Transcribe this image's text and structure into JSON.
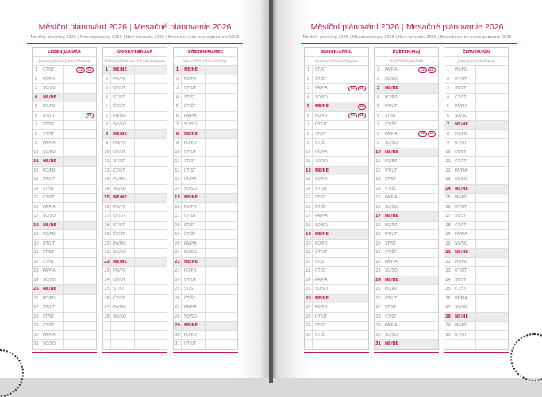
{
  "colors": {
    "accent": "#c2185b",
    "weekend_fill": "#ececec"
  },
  "pages": [
    {
      "title_cz": "Měsíční plánování 2026",
      "title_sk": "Mesačné plánovanie 2026",
      "subtitle": "Monthly planning 2026 | Monatsplanung 2026 | Havi tervezés 2026 | Ежемесячное планирование 2026"
    },
    {
      "title_cz": "Měsíční plánování 2026",
      "title_sk": "Mesačné plánovanie 2026",
      "subtitle": "Monthly planning 2026 | Monatsplanung 2026 | Havi tervezés 2026 | Ежемесячное планирование 2026"
    }
  ],
  "months": [
    {
      "name": "LEDEN/JANUÁR",
      "sub": "January/Januar/Január/Январь",
      "days": [
        [
          "1",
          "ČT/ŠT",
          "CZ",
          "SK"
        ],
        [
          "2",
          "PÁ/PIA"
        ],
        [
          "3",
          "SO/SO"
        ],
        [
          "4",
          "NE/NE"
        ],
        [
          "5",
          "PO/PO"
        ],
        [
          "6",
          "ÚT/UT",
          "SK"
        ],
        [
          "7",
          "ST/ST"
        ],
        [
          "8",
          "ČT/ŠT"
        ],
        [
          "9",
          "PÁ/PIA"
        ],
        [
          "10",
          "SO/SO"
        ],
        [
          "11",
          "NE/NE"
        ],
        [
          "12",
          "PO/PO"
        ],
        [
          "13",
          "ÚT/UT"
        ],
        [
          "14",
          "ST/ST"
        ],
        [
          "15",
          "ČT/ŠT"
        ],
        [
          "16",
          "PÁ/PIA"
        ],
        [
          "17",
          "SO/SO"
        ],
        [
          "18",
          "NE/NE"
        ],
        [
          "19",
          "PO/PO"
        ],
        [
          "20",
          "ÚT/UT"
        ],
        [
          "21",
          "ST/ST"
        ],
        [
          "22",
          "ČT/ŠT"
        ],
        [
          "23",
          "PÁ/PIA"
        ],
        [
          "24",
          "SO/SO"
        ],
        [
          "25",
          "NE/NE"
        ],
        [
          "26",
          "PO/PO"
        ],
        [
          "27",
          "ÚT/UT"
        ],
        [
          "28",
          "ST/ST"
        ],
        [
          "29",
          "ČT/ŠT"
        ],
        [
          "30",
          "PÁ/PIA"
        ],
        [
          "31",
          "SO/SO"
        ]
      ]
    },
    {
      "name": "ÚNOR/FEBRUÁR",
      "sub": "February/Februar/Február/Февраль",
      "days": [
        [
          "1",
          "NE/NE"
        ],
        [
          "2",
          "PO/PO"
        ],
        [
          "3",
          "ÚT/UT"
        ],
        [
          "4",
          "ST/ST"
        ],
        [
          "5",
          "ČT/ŠT"
        ],
        [
          "6",
          "PÁ/PIA"
        ],
        [
          "7",
          "SO/SO"
        ],
        [
          "8",
          "NE/NE"
        ],
        [
          "9",
          "PO/PO"
        ],
        [
          "10",
          "ÚT/UT"
        ],
        [
          "11",
          "ST/ST"
        ],
        [
          "12",
          "ČT/ŠT"
        ],
        [
          "13",
          "PÁ/PIA"
        ],
        [
          "14",
          "SO/SO"
        ],
        [
          "15",
          "NE/NE"
        ],
        [
          "16",
          "PO/PO"
        ],
        [
          "17",
          "ÚT/UT"
        ],
        [
          "18",
          "ST/ST"
        ],
        [
          "19",
          "ČT/ŠT"
        ],
        [
          "20",
          "PÁ/PIA"
        ],
        [
          "21",
          "SO/SO"
        ],
        [
          "22",
          "NE/NE"
        ],
        [
          "23",
          "PO/PO"
        ],
        [
          "24",
          "ÚT/UT"
        ],
        [
          "25",
          "ST/ST"
        ],
        [
          "26",
          "ČT/ŠT"
        ],
        [
          "27",
          "PÁ/PIA"
        ],
        [
          "28",
          "SO/SO"
        ]
      ]
    },
    {
      "name": "BŘEZEN/MAREC",
      "sub": "March/März/Március/Март",
      "days": [
        [
          "1",
          "NE/NE"
        ],
        [
          "2",
          "PO/PO"
        ],
        [
          "3",
          "ÚT/UT"
        ],
        [
          "4",
          "ST/ST"
        ],
        [
          "5",
          "ČT/ŠT"
        ],
        [
          "6",
          "PÁ/PIA"
        ],
        [
          "7",
          "SO/SO"
        ],
        [
          "8",
          "NE/NE"
        ],
        [
          "9",
          "PO/PO"
        ],
        [
          "10",
          "ÚT/UT"
        ],
        [
          "11",
          "ST/ST"
        ],
        [
          "12",
          "ČT/ŠT"
        ],
        [
          "13",
          "PÁ/PIA"
        ],
        [
          "14",
          "SO/SO"
        ],
        [
          "15",
          "NE/NE"
        ],
        [
          "16",
          "PO/PO"
        ],
        [
          "17",
          "ÚT/UT"
        ],
        [
          "18",
          "ST/ST"
        ],
        [
          "19",
          "ČT/ŠT"
        ],
        [
          "20",
          "PÁ/PIA"
        ],
        [
          "21",
          "SO/SO"
        ],
        [
          "22",
          "NE/NE"
        ],
        [
          "23",
          "PO/PO"
        ],
        [
          "24",
          "ÚT/UT"
        ],
        [
          "25",
          "ST/ST"
        ],
        [
          "26",
          "ČT/ŠT"
        ],
        [
          "27",
          "PÁ/PIA"
        ],
        [
          "28",
          "SO/SO"
        ],
        [
          "29",
          "NE/NE"
        ],
        [
          "30",
          "PO/PO"
        ],
        [
          "31",
          "ÚT/UT"
        ]
      ]
    },
    {
      "name": "DUBEN/APRÍL",
      "sub": "April/April/Április/Апрель",
      "days": [
        [
          "1",
          "ST/ST"
        ],
        [
          "2",
          "ČT/ŠT"
        ],
        [
          "3",
          "PÁ/PIA",
          "CZ",
          "SK"
        ],
        [
          "4",
          "SO/SO"
        ],
        [
          "5",
          "NE/NE",
          "SK"
        ],
        [
          "6",
          "PO/PO",
          "CZ",
          "SK"
        ],
        [
          "7",
          "ÚT/UT"
        ],
        [
          "8",
          "ST/ST"
        ],
        [
          "9",
          "ČT/ŠT"
        ],
        [
          "10",
          "PÁ/PIA"
        ],
        [
          "11",
          "SO/SO"
        ],
        [
          "12",
          "NE/NE"
        ],
        [
          "13",
          "PO/PO"
        ],
        [
          "14",
          "ÚT/UT"
        ],
        [
          "15",
          "ST/ST"
        ],
        [
          "16",
          "ČT/ŠT"
        ],
        [
          "17",
          "PÁ/PIA"
        ],
        [
          "18",
          "SO/SO"
        ],
        [
          "19",
          "NE/NE"
        ],
        [
          "20",
          "PO/PO"
        ],
        [
          "21",
          "ÚT/UT"
        ],
        [
          "22",
          "ST/ST"
        ],
        [
          "23",
          "ČT/ŠT"
        ],
        [
          "24",
          "PÁ/PIA"
        ],
        [
          "25",
          "SO/SO"
        ],
        [
          "26",
          "NE/NE"
        ],
        [
          "27",
          "PO/PO"
        ],
        [
          "28",
          "ÚT/UT"
        ],
        [
          "29",
          "ST/ST"
        ],
        [
          "30",
          "ČT/ŠT"
        ]
      ]
    },
    {
      "name": "KVĚTEN/MÁJ",
      "sub": "May/Mai/Május/Май",
      "days": [
        [
          "1",
          "PÁ/PIA",
          "CZ",
          "SK"
        ],
        [
          "2",
          "SO/SO"
        ],
        [
          "3",
          "NE/NE"
        ],
        [
          "4",
          "PO/PO"
        ],
        [
          "5",
          "ÚT/UT"
        ],
        [
          "6",
          "ST/ST"
        ],
        [
          "7",
          "ČT/ŠT"
        ],
        [
          "8",
          "PÁ/PIA",
          "CZ",
          "SK"
        ],
        [
          "9",
          "SO/SO"
        ],
        [
          "10",
          "NE/NE"
        ],
        [
          "11",
          "PO/PO"
        ],
        [
          "12",
          "ÚT/UT"
        ],
        [
          "13",
          "ST/ST"
        ],
        [
          "14",
          "ČT/ŠT"
        ],
        [
          "15",
          "PÁ/PIA"
        ],
        [
          "16",
          "SO/SO"
        ],
        [
          "17",
          "NE/NE"
        ],
        [
          "18",
          "PO/PO"
        ],
        [
          "19",
          "ÚT/UT"
        ],
        [
          "20",
          "ST/ST"
        ],
        [
          "21",
          "ČT/ŠT"
        ],
        [
          "22",
          "PÁ/PIA"
        ],
        [
          "23",
          "SO/SO"
        ],
        [
          "24",
          "NE/NE"
        ],
        [
          "25",
          "PO/PO"
        ],
        [
          "26",
          "ÚT/UT"
        ],
        [
          "27",
          "ST/ST"
        ],
        [
          "28",
          "ČT/ŠT"
        ],
        [
          "29",
          "PÁ/PIA"
        ],
        [
          "30",
          "SO/SO"
        ],
        [
          "31",
          "NE/NE"
        ]
      ]
    },
    {
      "name": "ČERVEN/JÚN",
      "sub": "June/Juni/Június/Июнь",
      "days": [
        [
          "1",
          "PO/PO"
        ],
        [
          "2",
          "ÚT/UT"
        ],
        [
          "3",
          "ST/ST"
        ],
        [
          "4",
          "ČT/ŠT"
        ],
        [
          "5",
          "PÁ/PIA"
        ],
        [
          "6",
          "SO/SO"
        ],
        [
          "7",
          "NE/NE"
        ],
        [
          "8",
          "PO/PO"
        ],
        [
          "9",
          "ÚT/UT"
        ],
        [
          "10",
          "ST/ST"
        ],
        [
          "11",
          "ČT/ŠT"
        ],
        [
          "12",
          "PÁ/PIA"
        ],
        [
          "13",
          "SO/SO"
        ],
        [
          "14",
          "NE/NE"
        ],
        [
          "15",
          "PO/PO"
        ],
        [
          "16",
          "ÚT/UT"
        ],
        [
          "17",
          "ST/ST"
        ],
        [
          "18",
          "ČT/ŠT"
        ],
        [
          "19",
          "PÁ/PIA"
        ],
        [
          "20",
          "SO/SO"
        ],
        [
          "21",
          "NE/NE"
        ],
        [
          "22",
          "PO/PO"
        ],
        [
          "23",
          "ÚT/UT"
        ],
        [
          "24",
          "ST/ST"
        ],
        [
          "25",
          "ČT/ŠT"
        ],
        [
          "26",
          "PÁ/PIA"
        ],
        [
          "27",
          "SO/SO"
        ],
        [
          "28",
          "NE/NE"
        ],
        [
          "29",
          "PO/PO"
        ],
        [
          "30",
          "ÚT/UT"
        ]
      ]
    }
  ]
}
